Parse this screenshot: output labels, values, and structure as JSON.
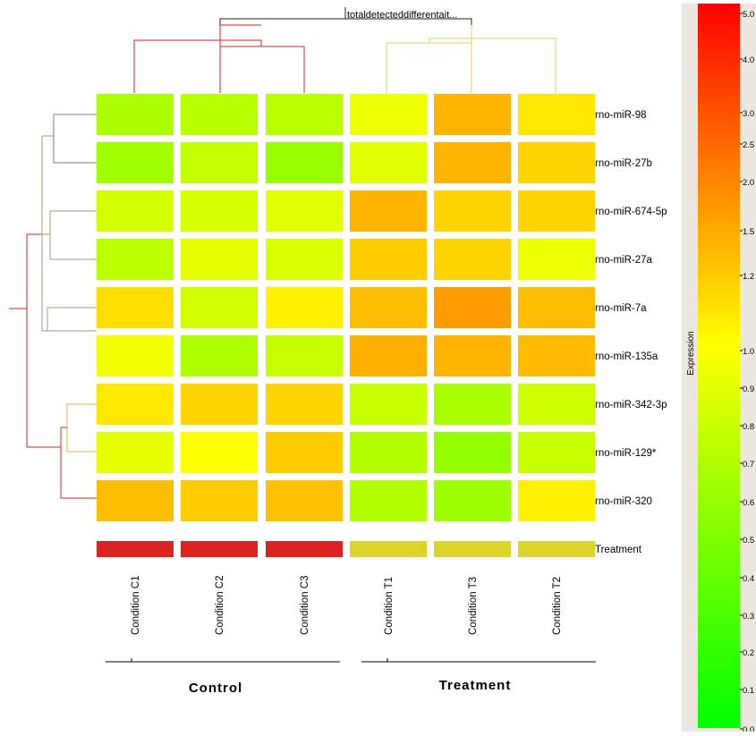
{
  "chart_data": {
    "type": "heatmap",
    "title": "totaldetecteddifferentait...",
    "columns": [
      "Condition C1",
      "Condition C2",
      "Condition C3",
      "Condition T1",
      "Condition T3",
      "Condition T2"
    ],
    "rows": [
      "rno-miR-98",
      "rno-miR-27b",
      "rno-miR-674-5p",
      "rno-miR-27a",
      "rno-miR-7a",
      "rno-miR-135a",
      "rno-miR-342-3p",
      "rno-miR-129*",
      "rno-miR-320"
    ],
    "values": [
      [
        0.67,
        0.72,
        0.73,
        0.93,
        1.35,
        1.08
      ],
      [
        0.63,
        0.76,
        0.6,
        0.88,
        1.35,
        1.15
      ],
      [
        0.82,
        0.84,
        0.88,
        1.35,
        1.15,
        1.15
      ],
      [
        0.73,
        0.9,
        0.85,
        1.18,
        1.15,
        0.93
      ],
      [
        1.12,
        0.82,
        1.05,
        1.28,
        1.6,
        1.28
      ],
      [
        0.95,
        0.68,
        0.78,
        1.4,
        1.35,
        1.3
      ],
      [
        1.08,
        1.15,
        1.15,
        0.78,
        0.66,
        0.8
      ],
      [
        0.9,
        1.0,
        1.18,
        0.7,
        0.58,
        0.78
      ],
      [
        1.28,
        1.18,
        1.25,
        0.7,
        0.62,
        1.05
      ]
    ],
    "annotation": {
      "label": "Treatment",
      "groups": [
        {
          "name": "Control",
          "color": "#dd2222",
          "columns": [
            "Condition C1",
            "Condition C2",
            "Condition C3"
          ]
        },
        {
          "name": "Treatment",
          "color": "#dcd428",
          "columns": [
            "Condition T1",
            "Condition T3",
            "Condition T2"
          ]
        }
      ]
    },
    "colorbar": {
      "label": "Expression",
      "ticks": [
        "0.0",
        "0.1",
        "0.2",
        "0.3",
        "0.4",
        "0.5",
        "0.6",
        "0.7",
        "0.8",
        "0.9",
        "1.0",
        "1.2",
        "1.5",
        "2.0",
        "2.5",
        "3.0",
        "4.0",
        "5.0"
      ],
      "low_color": "#00ff00",
      "mid_color": "#ffff00",
      "high_color": "#ff0000"
    },
    "dendrogram_colors": {
      "top_root": "#222222",
      "control_branch": "#dd2222",
      "treatment_branch": "#e8cf5a",
      "rows_root": "#dd2222",
      "rows_upper_a": "#7a7a9a",
      "rows_upper_b": "#9aa070",
      "rows_lower": "#e8b040"
    }
  }
}
